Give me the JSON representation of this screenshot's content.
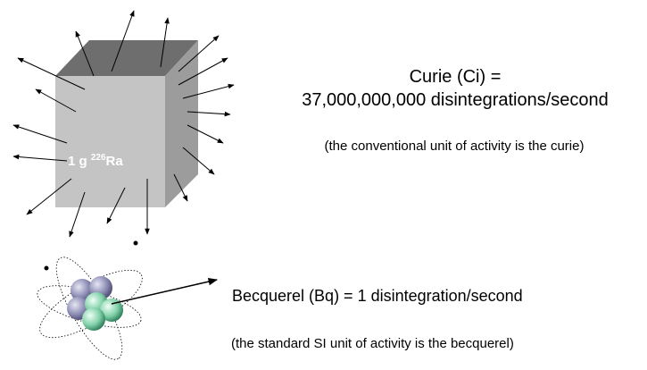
{
  "cube": {
    "prefix": "1 g",
    "mass_number": "226",
    "element": "Ra"
  },
  "curie": {
    "title": "Curie (Ci) =",
    "definition": "37,000,000,000 disintegrations/second",
    "note": "(the conventional unit of activity is the curie)"
  },
  "becquerel": {
    "definition": "Becquerel (Bq) = 1 disintegration/second",
    "note": "(the standard SI unit of activity is the becquerel)"
  }
}
